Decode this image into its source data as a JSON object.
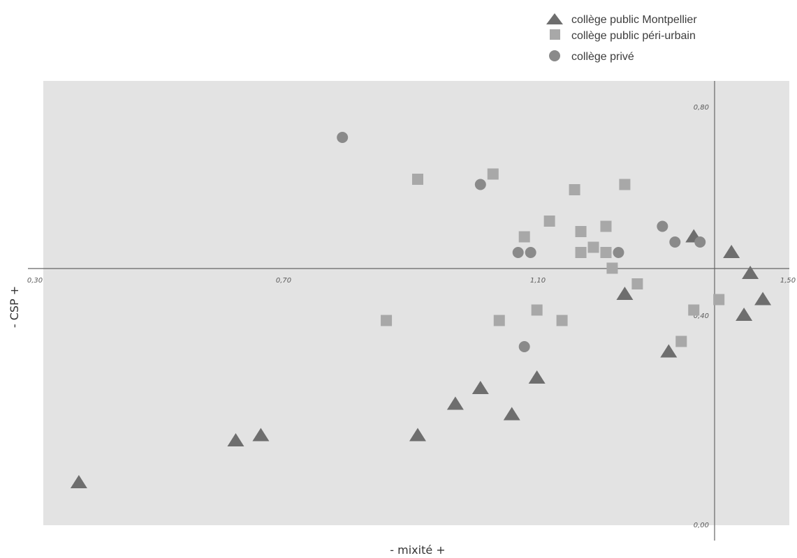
{
  "chart_data": {
    "type": "scatter",
    "xlabel": "- mixité +",
    "ylabel": "- CSP +",
    "xlim": [
      0.3,
      1.5
    ],
    "ylim": [
      0.0,
      0.8
    ],
    "x_ticks": [
      "0,30",
      "0,70",
      "1,10",
      "1,50"
    ],
    "y_ticks": [
      "0,00",
      "0,40",
      "0,80"
    ],
    "crosshair": {
      "x": 1.38,
      "y": 0.45
    },
    "grid": false,
    "legend_position": "top-right",
    "series": [
      {
        "name": "collège public Montpellier",
        "marker": "triangle",
        "color": "#6e6e6e",
        "points": [
          [
            0.37,
            0.08
          ],
          [
            0.62,
            0.16
          ],
          [
            0.66,
            0.17
          ],
          [
            0.91,
            0.17
          ],
          [
            0.97,
            0.23
          ],
          [
            1.01,
            0.26
          ],
          [
            1.06,
            0.21
          ],
          [
            1.1,
            0.28
          ],
          [
            1.24,
            0.44
          ],
          [
            1.31,
            0.33
          ],
          [
            1.35,
            0.55
          ],
          [
            1.41,
            0.52
          ],
          [
            1.43,
            0.4
          ],
          [
            1.44,
            0.48
          ],
          [
            1.46,
            0.43
          ]
        ]
      },
      {
        "name": "collège public péri-urbain",
        "marker": "square",
        "color": "#a8a8a8",
        "points": [
          [
            0.86,
            0.39
          ],
          [
            0.91,
            0.66
          ],
          [
            1.03,
            0.67
          ],
          [
            1.04,
            0.39
          ],
          [
            1.08,
            0.55
          ],
          [
            1.1,
            0.41
          ],
          [
            1.12,
            0.58
          ],
          [
            1.14,
            0.39
          ],
          [
            1.16,
            0.64
          ],
          [
            1.17,
            0.52
          ],
          [
            1.17,
            0.56
          ],
          [
            1.19,
            0.53
          ],
          [
            1.21,
            0.57
          ],
          [
            1.21,
            0.52
          ],
          [
            1.22,
            0.49
          ],
          [
            1.24,
            0.65
          ],
          [
            1.26,
            0.46
          ],
          [
            1.33,
            0.35
          ],
          [
            1.35,
            0.41
          ],
          [
            1.39,
            0.43
          ]
        ]
      },
      {
        "name": "collège privé",
        "marker": "circle",
        "color": "#8a8a8a",
        "points": [
          [
            0.79,
            0.74
          ],
          [
            1.01,
            0.65
          ],
          [
            1.07,
            0.52
          ],
          [
            1.08,
            0.34
          ],
          [
            1.09,
            0.52
          ],
          [
            1.23,
            0.52
          ],
          [
            1.3,
            0.57
          ],
          [
            1.32,
            0.54
          ],
          [
            1.36,
            0.54
          ]
        ]
      }
    ]
  }
}
